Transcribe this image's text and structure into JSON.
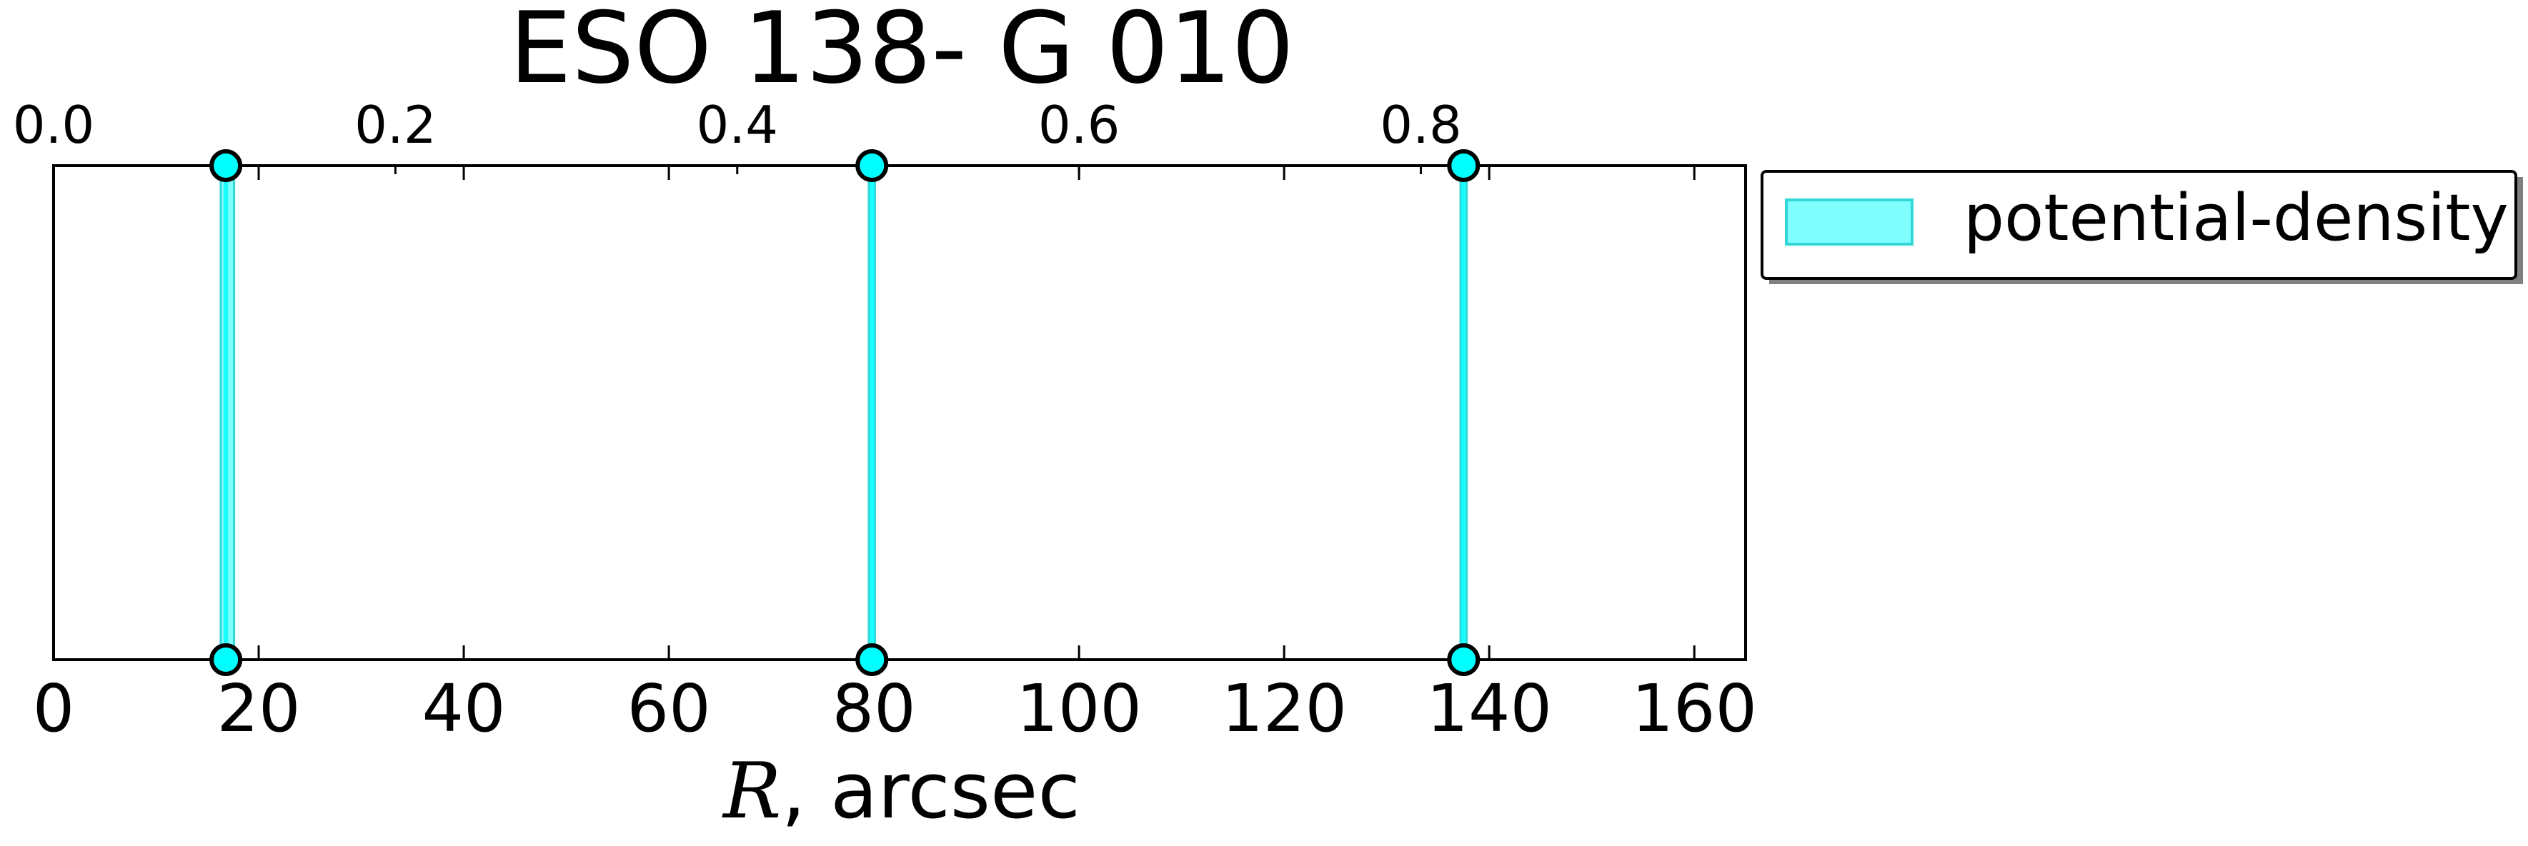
{
  "chart_data": {
    "type": "scatter",
    "title": "ESO 138- G 010",
    "xlabel_italic": "R",
    "xlabel_rest": ", arcsec",
    "xlim": [
      0,
      165
    ],
    "xticks": [
      0,
      20,
      40,
      60,
      80,
      100,
      120,
      140,
      160
    ],
    "top_xlim": [
      0,
      0.99
    ],
    "top_xticks": [
      "0.0",
      "0.2",
      "0.4",
      "0.6",
      "0.8"
    ],
    "top_xtick_values": [
      0.0,
      0.2,
      0.4,
      0.6,
      0.8
    ],
    "series": [
      {
        "name": "potential-density",
        "color": "#00ffff",
        "band_edge_color": "#33d6d6",
        "marker_edge_color": "#000000",
        "bands": [
          {
            "center": 16.8,
            "lo": 16.3,
            "hi": 17.6
          },
          {
            "center": 79.8,
            "lo": 79.5,
            "hi": 80.1
          },
          {
            "center": 137.5,
            "lo": 137.2,
            "hi": 137.8
          }
        ]
      }
    ],
    "legend_position": "upper-right, outside axes",
    "grid": false
  }
}
